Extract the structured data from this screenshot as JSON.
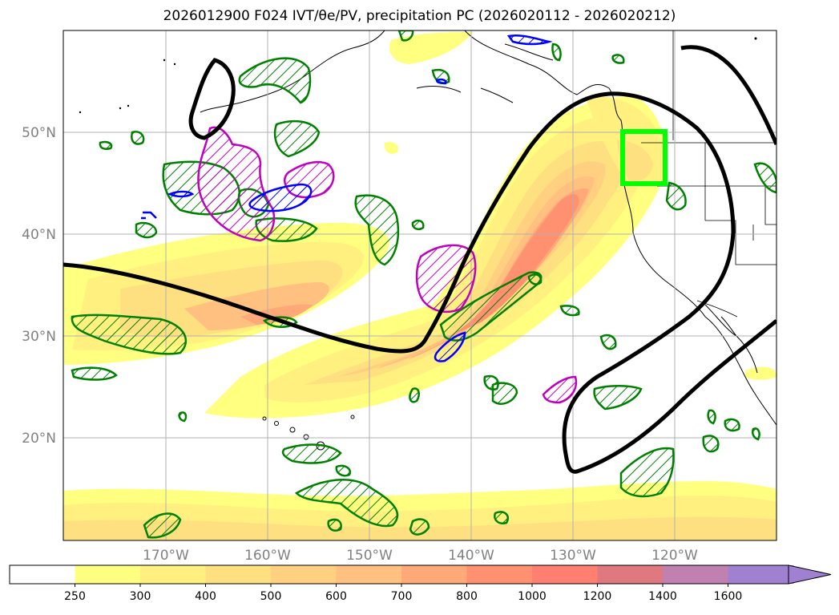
{
  "title": "2026012900 F024 IVT/θe/PV, precipitation PC (2026020112 - 2026020212)",
  "map": {
    "lat_labels": [
      "50°N",
      "40°N",
      "30°N",
      "20°N"
    ],
    "lon_labels": [
      "170°W",
      "160°W",
      "150°W",
      "140°W",
      "130°W",
      "120°W"
    ],
    "lon_range": [
      -180,
      -110
    ],
    "lat_range": [
      10,
      60
    ],
    "contour_colors": {
      "theta_e": "#000000",
      "pv_green": "#008000",
      "pv_blue": "#0000ff",
      "pv_magenta": "#c000c0",
      "target_box": "#00ff00"
    },
    "target_box_region": {
      "lon": [
        -125,
        -121
      ],
      "lat": [
        45,
        50
      ]
    }
  },
  "colorbar": {
    "levels": [
      "250",
      "300",
      "400",
      "500",
      "600",
      "700",
      "800",
      "1000",
      "1200",
      "1400",
      "1600"
    ],
    "colors": [
      "#ffff80",
      "#fff080",
      "#ffe080",
      "#ffd080",
      "#ffc080",
      "#ffa878",
      "#ff9070",
      "#ff8070",
      "#e07880",
      "#c080b0",
      "#a080d0"
    ],
    "extend": "max"
  }
}
